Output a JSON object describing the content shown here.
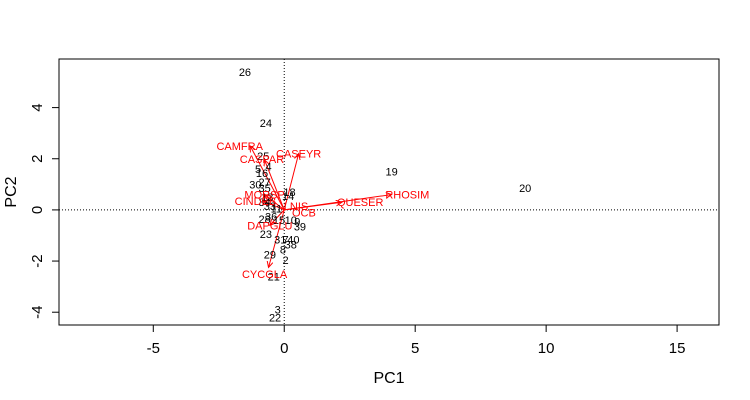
{
  "chart_data": {
    "type": "scatter",
    "subtype": "biplot",
    "xlabel": "PC1",
    "ylabel": "PC2",
    "xlim": [
      -8.6,
      16.6
    ],
    "ylim": [
      -4.5,
      5.9
    ],
    "x_ticks": [
      -5,
      0,
      5,
      10,
      15
    ],
    "x_tick_labels": [
      "-5",
      "0",
      "5",
      "10",
      "15"
    ],
    "y_ticks": [
      -4,
      -2,
      0,
      2,
      4
    ],
    "y_tick_labels": [
      "-4",
      "-2",
      "0",
      "2",
      "4"
    ],
    "reference_lines": {
      "x": 0,
      "y": 0,
      "style": "dotted"
    },
    "grid": false,
    "label_color": "#000000",
    "arrow_color": "#ff0000",
    "observations": [
      {
        "label": "26",
        "x": -1.5,
        "y": 5.4
      },
      {
        "label": "24",
        "x": -0.7,
        "y": 3.4
      },
      {
        "label": "25",
        "x": -0.8,
        "y": 2.1
      },
      {
        "label": "4",
        "x": -0.6,
        "y": 1.7
      },
      {
        "label": "5",
        "x": -1.0,
        "y": 1.6
      },
      {
        "label": "16",
        "x": -0.85,
        "y": 1.45
      },
      {
        "label": "30",
        "x": -1.1,
        "y": 1.0
      },
      {
        "label": "27",
        "x": -0.75,
        "y": 1.1
      },
      {
        "label": "35",
        "x": -0.75,
        "y": 0.85
      },
      {
        "label": "19",
        "x": 4.1,
        "y": 1.5
      },
      {
        "label": "20",
        "x": 9.2,
        "y": 0.85
      },
      {
        "label": "18",
        "x": 0.2,
        "y": 0.7
      },
      {
        "label": "14",
        "x": 0.15,
        "y": 0.55
      },
      {
        "label": "13",
        "x": -0.65,
        "y": 0.5
      },
      {
        "label": "34",
        "x": -0.75,
        "y": 0.3
      },
      {
        "label": "33",
        "x": -0.55,
        "y": 0.15
      },
      {
        "label": "11",
        "x": -0.3,
        "y": 0.05
      },
      {
        "label": "28",
        "x": -0.75,
        "y": -0.35
      },
      {
        "label": "36",
        "x": -0.5,
        "y": -0.25
      },
      {
        "label": "15",
        "x": -0.2,
        "y": -0.4
      },
      {
        "label": "10",
        "x": 0.25,
        "y": -0.4
      },
      {
        "label": "9",
        "x": 0.5,
        "y": -0.45
      },
      {
        "label": "39",
        "x": 0.6,
        "y": -0.65
      },
      {
        "label": "23",
        "x": -0.7,
        "y": -0.95
      },
      {
        "label": "31",
        "x": -0.15,
        "y": -1.15
      },
      {
        "label": "7",
        "x": 0.05,
        "y": -1.15
      },
      {
        "label": "40",
        "x": 0.35,
        "y": -1.15
      },
      {
        "label": "38",
        "x": 0.25,
        "y": -1.35
      },
      {
        "label": "8",
        "x": -0.05,
        "y": -1.55
      },
      {
        "label": "29",
        "x": -0.55,
        "y": -1.75
      },
      {
        "label": "2",
        "x": 0.05,
        "y": -1.95
      },
      {
        "label": "21",
        "x": -0.4,
        "y": -2.6
      },
      {
        "label": "3",
        "x": -0.25,
        "y": -3.9
      },
      {
        "label": "22",
        "x": -0.35,
        "y": -4.2
      }
    ],
    "variables": [
      {
        "label": "CAMFRA",
        "x": -1.3,
        "y": 2.5
      },
      {
        "label": "CASPAR",
        "x": -0.75,
        "y": 1.95
      },
      {
        "label": "CASEYR",
        "x": 0.55,
        "y": 2.2
      },
      {
        "label": "RHOSIM",
        "x": 4.1,
        "y": 0.6
      },
      {
        "label": "QUESER",
        "x": 2.2,
        "y": 0.3
      },
      {
        "label": "MORSP",
        "x": -0.75,
        "y": 0.6
      },
      {
        "label": "CINDEB",
        "x": -0.8,
        "y": 0.35
      },
      {
        "label": "DAPGLU",
        "x": -0.55,
        "y": -0.6
      },
      {
        "label": "CYCGLA",
        "x": -0.6,
        "y": -2.25
      }
    ],
    "variable_label_text": [
      {
        "label": "CAMFRA",
        "x": -1.7,
        "y": 2.5
      },
      {
        "label": "CASPAR",
        "x": -0.85,
        "y": 2.0
      },
      {
        "label": "CASEYR",
        "x": 0.55,
        "y": 2.2
      },
      {
        "label": "RHOSIM",
        "x": 4.7,
        "y": 0.6
      },
      {
        "label": "QUESER",
        "x": 2.9,
        "y": 0.3
      },
      {
        "label": "MORSP",
        "x": -0.75,
        "y": 0.6
      },
      {
        "label": "CINDEB",
        "x": -1.1,
        "y": 0.35
      },
      {
        "label": "DAPGLU",
        "x": -0.55,
        "y": -0.6
      },
      {
        "label": "CYCGLA",
        "x": -0.75,
        "y": -2.5
      }
    ],
    "extra_red_labels": [
      {
        "label": "LNIS",
        "x": 0.45,
        "y": 0.15
      },
      {
        "label": "OCB",
        "x": 0.75,
        "y": -0.1
      }
    ]
  }
}
